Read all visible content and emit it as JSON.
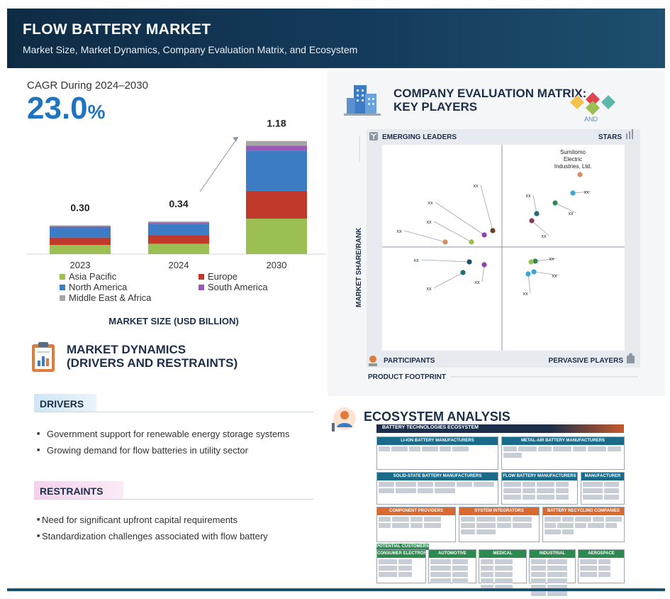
{
  "header": {
    "title": "FLOW BATTERY MARKET",
    "subtitle": "Market Size, Market Dynamics, Company Evaluation Matrix, and Ecosystem"
  },
  "cagr": {
    "label": "CAGR During 2024–2030",
    "value": "23.0",
    "unit": "%"
  },
  "chart_data": {
    "type": "bar",
    "stacked": true,
    "title": "",
    "xlabel": "MARKET SIZE (USD BILLION)",
    "categories": [
      "2023",
      "2024",
      "2030"
    ],
    "totals": [
      "0.30",
      "0.34",
      "1.18"
    ],
    "series": [
      {
        "name": "Asia Pacific",
        "color": "#9bbf52",
        "values": [
          0.095,
          0.108,
          0.37
        ]
      },
      {
        "name": "Europe",
        "color": "#c0392b",
        "values": [
          0.078,
          0.088,
          0.29
        ]
      },
      {
        "name": "North America",
        "color": "#3b7cc4",
        "values": [
          0.105,
          0.12,
          0.42
        ]
      },
      {
        "name": "South America",
        "color": "#9b59b6",
        "values": [
          0.012,
          0.013,
          0.05
        ]
      },
      {
        "name": "Middle East & Africa",
        "color": "#a6a6a6",
        "values": [
          0.01,
          0.011,
          0.05
        ]
      }
    ],
    "legend_position": "bottom",
    "grid": false
  },
  "dynamics": {
    "title_line1": "MARKET DYNAMICS",
    "title_line2": "(DRIVERS AND RESTRAINTS)",
    "drivers_label": "DRIVERS",
    "drivers": [
      "Government support for renewable energy storage systems",
      "Growing demand for flow batteries in utility sector"
    ],
    "restraints_label": "RESTRAINTS",
    "restraints": [
      "Need for significant upfront capital requirements",
      "Standardization challenges associated with flow battery"
    ]
  },
  "matrix": {
    "title_line1": "COMPANY EVALUATION MATRIX:",
    "title_line2": "KEY PLAYERS",
    "and_label": "AND",
    "quadrants": {
      "top_left": "EMERGING LEADERS",
      "top_right": "STARS",
      "bottom_left": "PARTICIPANTS",
      "bottom_right": "PERVASIVE PLAYERS"
    },
    "y_axis_label": "MARKET SHARE/RANK",
    "x_axis_label": "PRODUCT FOOTPRINT",
    "highlight_company": [
      "Sumitomo",
      "Electric",
      "Industries, Ltd."
    ],
    "placeholder_label": "xx"
  },
  "ecosystem": {
    "title": "ECOSYSTEM ANALYSIS",
    "banner": "BATTERY TECHNOLOGIES ECOSYSTEM",
    "groups": [
      "LI-ION BATTERY MANUFACTURERS",
      "METAL-AIR BATTERY MANUFACTURERS",
      "SOLID-STATE BATTERY MANUFACTURERS",
      "FLOW BATTERY MANUFACTURERS",
      "MANUFACTURER",
      "COMPONENT PROVIDERS",
      "SYSTEM INTEGRATORS",
      "BATTERY RECYCLING COMPANIES",
      "POTENTIAL CUSTOMERS",
      "CONSUMER ELECTRONICS",
      "AUTOMOTIVE",
      "MEDICAL",
      "INDUSTRIAL",
      "AEROSPACE"
    ]
  }
}
